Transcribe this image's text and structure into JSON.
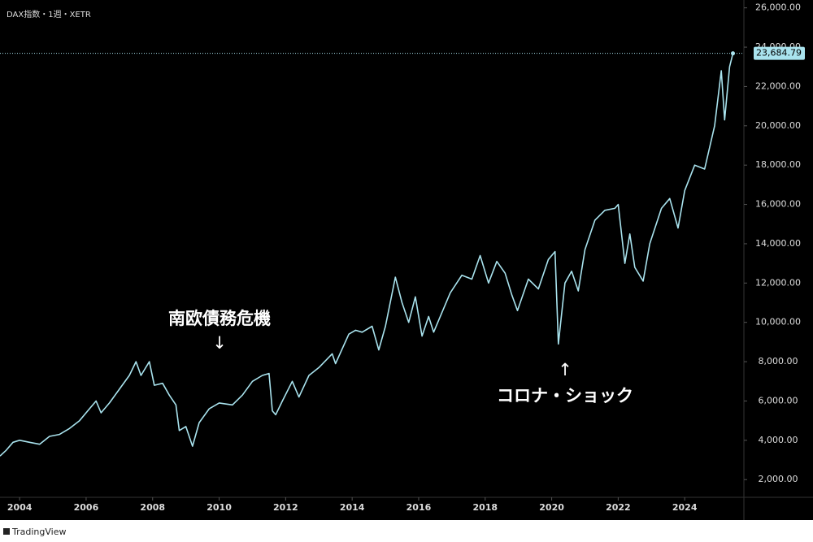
{
  "chart_data": {
    "type": "line",
    "title": "DAX指数・1週・XETR",
    "annotations": [
      "南欧債務危機",
      "↓",
      "↑",
      "コロナ・ショック"
    ],
    "footer": "TradingView",
    "series": [
      {
        "name": "DAX",
        "color": "#a9e3ee",
        "x": [
          2003.41,
          2003.6,
          2003.8,
          2004.0,
          2004.3,
          2004.6,
          2004.9,
          2005.2,
          2005.5,
          2005.8,
          2006.1,
          2006.3,
          2006.45,
          2006.7,
          2007.0,
          2007.3,
          2007.5,
          2007.65,
          2007.9,
          2008.05,
          2008.3,
          2008.5,
          2008.7,
          2008.8,
          2009.0,
          2009.2,
          2009.4,
          2009.7,
          2010.0,
          2010.4,
          2010.7,
          2011.0,
          2011.3,
          2011.5,
          2011.6,
          2011.7,
          2011.9,
          2012.2,
          2012.4,
          2012.7,
          2013.0,
          2013.4,
          2013.5,
          2013.9,
          2014.1,
          2014.3,
          2014.6,
          2014.8,
          2015.0,
          2015.3,
          2015.5,
          2015.7,
          2015.9,
          2016.1,
          2016.3,
          2016.45,
          2016.7,
          2016.95,
          2017.3,
          2017.6,
          2017.85,
          2018.1,
          2018.35,
          2018.6,
          2018.8,
          2018.97,
          2019.3,
          2019.6,
          2019.9,
          2020.1,
          2020.2,
          2020.4,
          2020.6,
          2020.8,
          2021.0,
          2021.3,
          2021.6,
          2021.9,
          2022.0,
          2022.2,
          2022.35,
          2022.5,
          2022.75,
          2022.95,
          2023.3,
          2023.55,
          2023.8,
          2024.0,
          2024.3,
          2024.6,
          2024.9,
          2025.1,
          2025.2,
          2025.35,
          2025.45
        ],
        "values": [
          3200,
          3500,
          3900,
          4000,
          3900,
          3800,
          4200,
          4300,
          4600,
          5000,
          5600,
          6000,
          5400,
          5900,
          6600,
          7300,
          8000,
          7300,
          8000,
          6800,
          6900,
          6300,
          5800,
          4500,
          4700,
          3700,
          4900,
          5600,
          5900,
          5800,
          6300,
          7000,
          7300,
          7400,
          5500,
          5300,
          6000,
          7000,
          6200,
          7300,
          7700,
          8400,
          7900,
          9400,
          9600,
          9500,
          9800,
          8600,
          9800,
          12300,
          11000,
          10000,
          11300,
          9300,
          10300,
          9500,
          10500,
          11500,
          12400,
          12200,
          13400,
          12000,
          13100,
          12500,
          11400,
          10600,
          12200,
          11700,
          13200,
          13600,
          8900,
          12000,
          12600,
          11600,
          13700,
          15200,
          15700,
          15800,
          16000,
          13000,
          14500,
          12800,
          12100,
          14000,
          15800,
          16300,
          14800,
          16700,
          18000,
          17800,
          20000,
          22800,
          20300,
          23000,
          23684.79
        ]
      }
    ],
    "last_price": {
      "value": 23684.79,
      "label": "23,684.79"
    },
    "xlim": [
      2003.41,
      2025.78
    ],
    "xticks": [
      2004,
      2006,
      2008,
      2010,
      2012,
      2014,
      2016,
      2018,
      2020,
      2022,
      2024
    ],
    "ylim": [
      1100,
      26400
    ],
    "yticks": [
      {
        "value": 2000,
        "label": "2,000.00"
      },
      {
        "value": 4000,
        "label": "4,000.00"
      },
      {
        "value": 6000,
        "label": "6,000.00"
      },
      {
        "value": 8000,
        "label": "8,000.00"
      },
      {
        "value": 10000,
        "label": "10,000.00"
      },
      {
        "value": 12000,
        "label": "12,000.00"
      },
      {
        "value": 14000,
        "label": "14,000.00"
      },
      {
        "value": 16000,
        "label": "16,000.00"
      },
      {
        "value": 18000,
        "label": "18,000.00"
      },
      {
        "value": 20000,
        "label": "20,000.00"
      },
      {
        "value": 22000,
        "label": "22,000.00"
      },
      {
        "value": 24000,
        "label": "24,000.00"
      },
      {
        "value": 26000,
        "label": "26,000.00"
      }
    ]
  }
}
